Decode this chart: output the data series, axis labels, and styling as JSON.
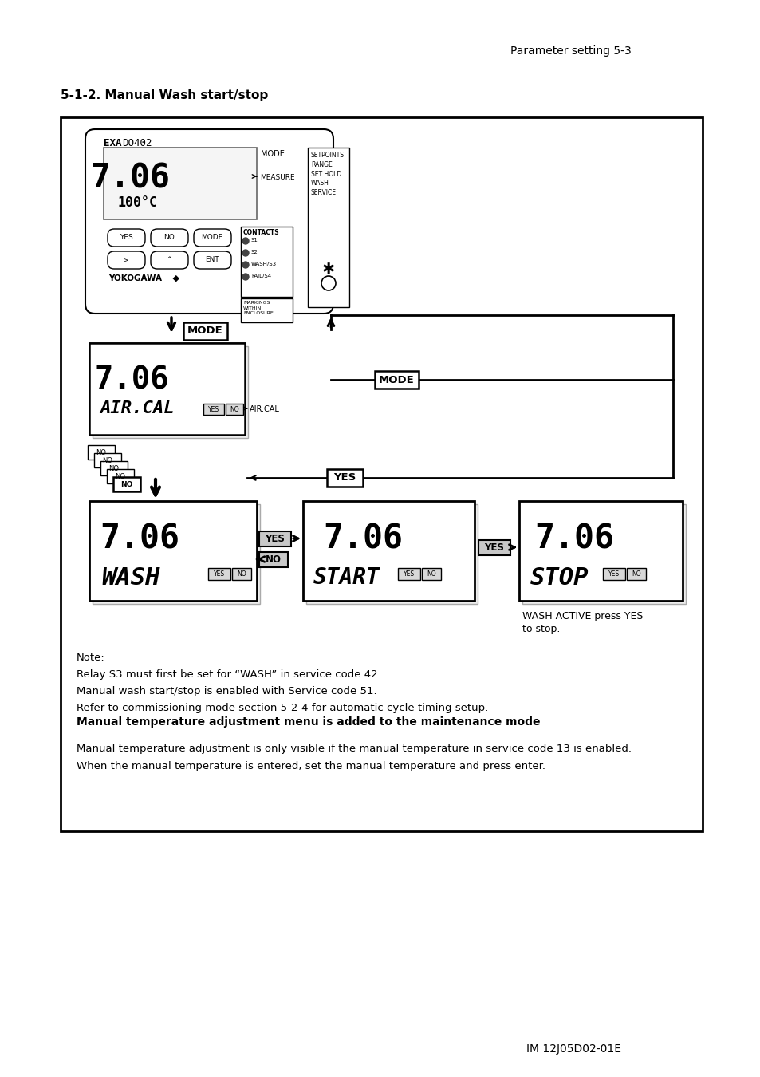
{
  "page_header_right": "Parameter setting 5-3",
  "section_title": "5-1-2. Manual Wash start/stop",
  "footer_text": "IM 12J05D02-01E",
  "note_lines": [
    "Note:",
    "Relay S3 must first be set for “WASH” in service code 42",
    "Manual wash start/stop is enabled with Service code 51.",
    "Refer to commissioning mode section 5-2-4 for automatic cycle timing setup."
  ],
  "bold_note": "Manual temperature adjustment menu is added to the maintenance mode",
  "manual_temp_line1": "Manual temperature adjustment is only visible if the manual temperature in service code 13 is enabled.",
  "manual_temp_line2": "When the manual temperature is entered, set the manual temperature and press enter.",
  "wash_active_line1": "WASH ACTIVE press YES",
  "wash_active_line2": "to stop.",
  "bg_color": "#ffffff"
}
